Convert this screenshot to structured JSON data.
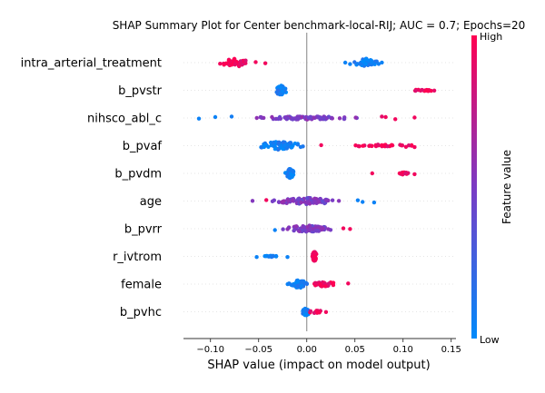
{
  "chart_data": {
    "type": "scatter",
    "title": "SHAP Summary Plot for Center benchmark-local-RIJ; AUC = 0.7; Epochs=20",
    "xlabel": "SHAP value (impact on model output)",
    "xlim": [
      -0.128,
      0.155
    ],
    "xticks": [
      -0.1,
      -0.05,
      0.0,
      0.05,
      0.1,
      0.15
    ],
    "xtick_labels": [
      "−0.10",
      "−0.05",
      "0.00",
      "0.05",
      "0.10",
      "0.15"
    ],
    "zero_line": 0.0,
    "grid": false,
    "colorbar": {
      "label": "Feature value",
      "high_label": "High",
      "low_label": "Low",
      "low_color": "#008afb",
      "mid_color": "#7b3bc4",
      "high_color": "#ff0052"
    },
    "features": [
      {
        "name": "intra_arterial_treatment",
        "clusters": [
          {
            "center": -0.073,
            "spread": 0.013,
            "width": 0.01,
            "value": 0.95,
            "count": 42
          },
          {
            "center": 0.062,
            "spread": 0.012,
            "width": 0.01,
            "value": 0.05,
            "count": 40
          }
        ],
        "outliers": [
          {
            "x": -0.09,
            "value": 0.95
          },
          {
            "x": -0.053,
            "value": 0.95
          },
          {
            "x": -0.043,
            "value": 0.95
          },
          {
            "x": 0.04,
            "value": 0.05
          },
          {
            "x": 0.045,
            "value": 0.05
          },
          {
            "x": 0.078,
            "value": 0.05
          }
        ]
      },
      {
        "name": "b_pvstr",
        "clusters": [
          {
            "center": -0.027,
            "spread": 0.005,
            "width": 0.012,
            "value": 0.05,
            "count": 70
          },
          {
            "center": 0.122,
            "spread": 0.014,
            "width": 0.002,
            "value": 0.95,
            "count": 16
          }
        ],
        "outliers": []
      },
      {
        "name": "nihsco_abl_c",
        "clusters": [
          {
            "center": 0.0,
            "spread": 0.045,
            "width": 0.004,
            "value": 0.5,
            "count": 90
          }
        ],
        "outliers": [
          {
            "x": -0.112,
            "value": 0.05
          },
          {
            "x": -0.095,
            "value": 0.05
          },
          {
            "x": -0.078,
            "value": 0.08
          },
          {
            "x": 0.078,
            "value": 0.9
          },
          {
            "x": 0.082,
            "value": 0.95
          },
          {
            "x": 0.092,
            "value": 0.95
          },
          {
            "x": 0.112,
            "value": 0.95
          }
        ]
      },
      {
        "name": "b_pvaf",
        "clusters": [
          {
            "center": -0.028,
            "spread": 0.018,
            "width": 0.01,
            "value": 0.05,
            "count": 70
          },
          {
            "center": 0.08,
            "spread": 0.032,
            "width": 0.003,
            "value": 0.95,
            "count": 30
          }
        ],
        "outliers": [
          {
            "x": 0.015,
            "value": 0.95
          },
          {
            "x": 0.103,
            "value": 0.95
          },
          {
            "x": 0.112,
            "value": 0.95
          }
        ]
      },
      {
        "name": "b_pvdm",
        "clusters": [
          {
            "center": -0.017,
            "spread": 0.004,
            "width": 0.012,
            "value": 0.05,
            "count": 60
          },
          {
            "center": 0.1,
            "spread": 0.007,
            "width": 0.003,
            "value": 0.95,
            "count": 16
          }
        ],
        "outliers": [
          {
            "x": 0.068,
            "value": 0.95
          },
          {
            "x": 0.112,
            "value": 0.95
          }
        ]
      },
      {
        "name": "age",
        "clusters": [
          {
            "center": 0.0,
            "spread": 0.028,
            "width": 0.008,
            "value": 0.5,
            "count": 95
          }
        ],
        "outliers": [
          {
            "x": -0.042,
            "value": 0.95
          },
          {
            "x": 0.053,
            "value": 0.05
          },
          {
            "x": 0.058,
            "value": 0.05
          },
          {
            "x": 0.07,
            "value": 0.05
          }
        ]
      },
      {
        "name": "b_pvrr",
        "clusters": [
          {
            "center": 0.0,
            "spread": 0.022,
            "width": 0.008,
            "value": 0.5,
            "count": 80
          }
        ],
        "outliers": [
          {
            "x": -0.033,
            "value": 0.05
          },
          {
            "x": 0.038,
            "value": 0.95
          },
          {
            "x": 0.045,
            "value": 0.95
          }
        ]
      },
      {
        "name": "r_ivtrom",
        "clusters": [
          {
            "center": -0.038,
            "spread": 0.008,
            "width": 0.002,
            "value": 0.05,
            "count": 14
          },
          {
            "center": 0.008,
            "spread": 0.002,
            "width": 0.012,
            "value": 0.95,
            "count": 70
          }
        ],
        "outliers": [
          {
            "x": -0.052,
            "value": 0.05
          },
          {
            "x": -0.02,
            "value": 0.05
          }
        ]
      },
      {
        "name": "female",
        "clusters": [
          {
            "center": -0.008,
            "spread": 0.007,
            "width": 0.01,
            "value": 0.05,
            "count": 50
          },
          {
            "center": 0.018,
            "spread": 0.01,
            "width": 0.006,
            "value": 0.95,
            "count": 28
          }
        ],
        "outliers": [
          {
            "x": 0.043,
            "value": 0.95
          }
        ]
      },
      {
        "name": "b_pvhc",
        "clusters": [
          {
            "center": -0.001,
            "spread": 0.003,
            "width": 0.01,
            "value": 0.05,
            "count": 55
          },
          {
            "center": 0.01,
            "spread": 0.006,
            "width": 0.004,
            "value": 0.95,
            "count": 18
          }
        ],
        "outliers": [
          {
            "x": 0.02,
            "value": 0.95
          }
        ]
      }
    ]
  }
}
